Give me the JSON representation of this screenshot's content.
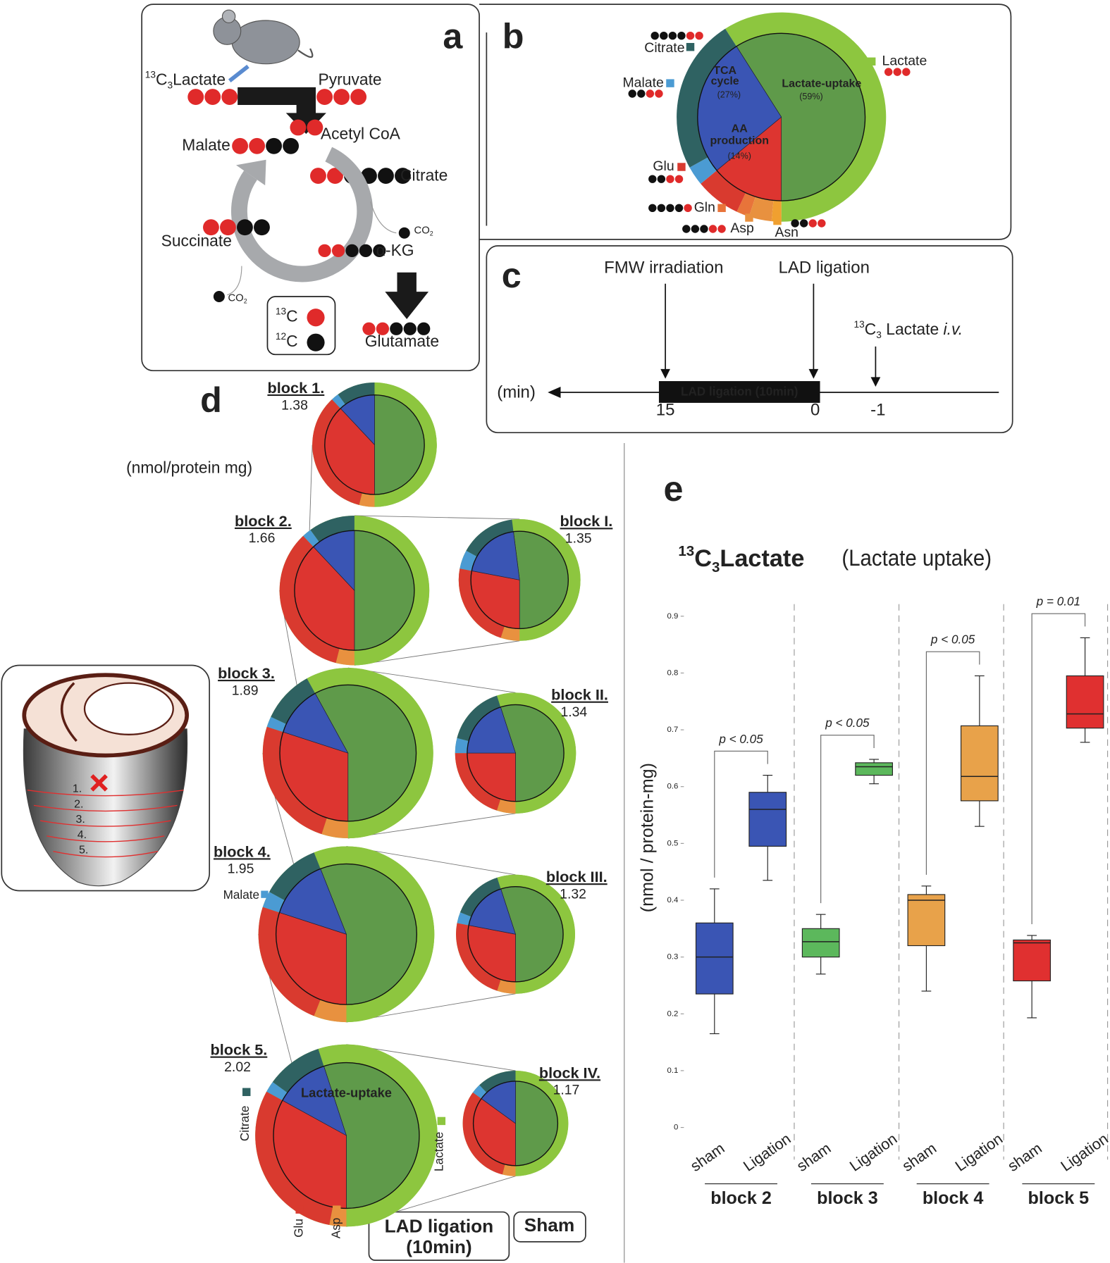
{
  "panel_a": {
    "letter": "a",
    "lactate": {
      "sup": "13",
      "main": "C",
      "sub": "3",
      "rest": "Lactate"
    },
    "pyruvate": "Pyruvate",
    "acetyl_coa": "Acetyl CoA",
    "malate": "Malate",
    "citrate": "Citrate",
    "succinate": "Succinate",
    "akg": "α-KG",
    "co2_right": {
      "main": "CO",
      "sub": "2"
    },
    "co2_left": {
      "main": "CO",
      "sub": "2"
    },
    "glutamate": "Glutamate",
    "legend": [
      {
        "sup": "13",
        "main": "C"
      },
      {
        "sup": "12",
        "main": "C"
      }
    ]
  },
  "panel_b": {
    "letter": "b",
    "inner": {
      "labels": [
        [
          "Lactate-uptake"
        ],
        [
          "AA",
          "production"
        ],
        [
          "TCA",
          "cycle"
        ]
      ],
      "values": [
        59,
        14,
        27
      ],
      "value_labels": [
        "(59%)",
        "(14%)",
        "(27%)"
      ],
      "colors": [
        "#5f9a4a",
        "#dd3530",
        "#3a55b4"
      ]
    },
    "ring": {
      "labels": [
        "Lactate",
        "Asn",
        "Asp",
        "Gln",
        "Glu",
        "Malate",
        "Citrate"
      ],
      "values": [
        59,
        1.5,
        3.5,
        2,
        7,
        3,
        24
      ],
      "colors": [
        "#8dc63f",
        "#f0a030",
        "#e8913f",
        "#e8743a",
        "#d93a2f",
        "#4b9bd3",
        "#2f6262"
      ]
    }
  },
  "panel_c": {
    "letter": "c",
    "fmw": "FMW irradiation",
    "lad": "LAD ligation",
    "lactate": {
      "sup": "13",
      "main": "C",
      "sub": "3",
      "rest": " Lactate ",
      "em": "i.v."
    },
    "unit": "(min)",
    "bar": "LAD ligation (10min)",
    "ticks": [
      15,
      0,
      -1
    ]
  },
  "panel_d": {
    "letter": "d",
    "unit": "(nmol/protein mg)",
    "inner_colors": [
      "#5f9a4a",
      "#dd3530",
      "#3a55b4"
    ],
    "ring_colors": [
      "#8dc63f",
      "#e8913f",
      "#d93a2f",
      "#4b9bd3",
      "#2f6262"
    ],
    "pies": [
      {
        "label": "block 1.",
        "value": 1.38,
        "inner": [
          50,
          38,
          12
        ],
        "ring": [
          50,
          4,
          34,
          2,
          10
        ]
      },
      {
        "label": "block 2.",
        "value": 1.66,
        "inner": [
          50,
          38,
          12
        ],
        "ring": [
          50,
          4,
          34,
          2,
          10
        ]
      },
      {
        "label": "block I.",
        "value": 1.35,
        "inner": [
          52,
          28,
          20
        ],
        "ring": [
          52,
          5,
          23,
          5,
          15
        ]
      },
      {
        "label": "block 3.",
        "value": 1.89,
        "inner": [
          58,
          30,
          12
        ],
        "ring": [
          58,
          5,
          25,
          2,
          10
        ]
      },
      {
        "label": "block II.",
        "value": 1.34,
        "inner": [
          55,
          25,
          20
        ],
        "ring": [
          55,
          5,
          20,
          4,
          16
        ]
      },
      {
        "label": "block 4.",
        "value": 1.95,
        "inner": [
          56,
          30,
          14
        ],
        "ring": [
          56,
          6,
          24,
          3,
          11
        ]
      },
      {
        "label": "block III.",
        "value": 1.32,
        "inner": [
          55,
          28,
          17
        ],
        "ring": [
          55,
          5,
          23,
          3,
          14
        ]
      },
      {
        "label": "block 5.",
        "value": 2.02,
        "inner": [
          55,
          33,
          12
        ],
        "ring": [
          55,
          3,
          30,
          2,
          10
        ]
      },
      {
        "label": "block IV.",
        "value": 1.17,
        "inner": [
          50,
          35,
          15
        ],
        "ring": [
          50,
          4,
          31,
          3,
          12
        ]
      }
    ],
    "malate_label": "Malate",
    "block5_labels": {
      "citrate": "Citrate",
      "glu": "Glu",
      "asp": "Asp",
      "lactate": "Lactate",
      "inner": "Lactate-uptake"
    },
    "lad_box": [
      "LAD ligation",
      "(10min)"
    ],
    "sham_box": "Sham",
    "heart_labels": [
      "1.",
      "2.",
      "3.",
      "4.",
      "5."
    ]
  },
  "panel_e": {
    "letter": "e",
    "type": "box",
    "title": {
      "sup": "13",
      "main": "C",
      "sub": "3",
      "rest": "Lactate"
    },
    "subtitle": "(Lactate uptake)",
    "ylabel": "(nmol / protein-mg)",
    "ylim": [
      0,
      0.9
    ],
    "yticks": [
      0,
      0.1,
      0.2,
      0.3,
      0.4,
      0.5,
      0.6,
      0.7,
      0.8,
      0.9
    ],
    "groups": [
      {
        "name": "block 2",
        "color": "#3a55b4",
        "pvalue": "p < 0.05",
        "boxes": [
          {
            "name": "sham",
            "whisker_low": 0.165,
            "q1": 0.235,
            "median": 0.3,
            "q3": 0.36,
            "whisker_high": 0.42
          },
          {
            "name": "Ligation",
            "whisker_low": 0.435,
            "q1": 0.495,
            "median": 0.56,
            "q3": 0.59,
            "whisker_high": 0.62
          }
        ]
      },
      {
        "name": "block 3",
        "color": "#5cb85c",
        "pvalue": "p < 0.05",
        "boxes": [
          {
            "name": "sham",
            "whisker_low": 0.27,
            "q1": 0.3,
            "median": 0.327,
            "q3": 0.35,
            "whisker_high": 0.375
          },
          {
            "name": "Ligation",
            "whisker_low": 0.605,
            "q1": 0.62,
            "median": 0.635,
            "q3": 0.642,
            "whisker_high": 0.648
          }
        ]
      },
      {
        "name": "block 4",
        "color": "#e8a24a",
        "pvalue": "p < 0.05",
        "boxes": [
          {
            "name": "sham",
            "whisker_low": 0.24,
            "q1": 0.32,
            "median": 0.4,
            "q3": 0.41,
            "whisker_high": 0.425
          },
          {
            "name": "Ligation",
            "whisker_low": 0.53,
            "q1": 0.575,
            "median": 0.618,
            "q3": 0.707,
            "whisker_high": 0.795
          }
        ]
      },
      {
        "name": "block 5",
        "color": "#e03030",
        "pvalue": "p = 0.01",
        "boxes": [
          {
            "name": "sham",
            "whisker_low": 0.193,
            "q1": 0.258,
            "median": 0.325,
            "q3": 0.33,
            "whisker_high": 0.338
          },
          {
            "name": "Ligation",
            "whisker_low": 0.678,
            "q1": 0.703,
            "median": 0.728,
            "q3": 0.795,
            "whisker_high": 0.862
          }
        ]
      }
    ]
  }
}
